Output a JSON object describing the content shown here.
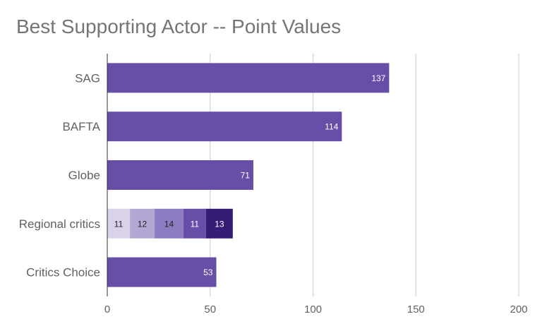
{
  "chart_data": {
    "type": "bar",
    "orientation": "horizontal",
    "stacked": true,
    "title": "Best Supporting Actor -- Point Values",
    "xlabel": "",
    "ylabel": "",
    "xlim": [
      0,
      200
    ],
    "x_ticks": [
      0,
      50,
      100,
      150,
      200
    ],
    "grid": true,
    "legend": "none",
    "categories": [
      "SAG",
      "BAFTA",
      "Globe",
      "Regional critics",
      "Critics Choice"
    ],
    "bars": [
      {
        "category": "SAG",
        "segments": [
          {
            "value": 137,
            "color": "#674ea7",
            "label_color": "#ffffff"
          }
        ]
      },
      {
        "category": "BAFTA",
        "segments": [
          {
            "value": 114,
            "color": "#674ea7",
            "label_color": "#ffffff"
          }
        ]
      },
      {
        "category": "Globe",
        "segments": [
          {
            "value": 71,
            "color": "#674ea7",
            "label_color": "#ffffff"
          }
        ]
      },
      {
        "category": "Regional critics",
        "segments": [
          {
            "value": 11,
            "color": "#d9d2e9",
            "label_color": "#212121"
          },
          {
            "value": 12,
            "color": "#b4a7d6",
            "label_color": "#212121"
          },
          {
            "value": 14,
            "color": "#8e7cc3",
            "label_color": "#212121"
          },
          {
            "value": 11,
            "color": "#674ea7",
            "label_color": "#ffffff"
          },
          {
            "value": 13,
            "color": "#351c75",
            "label_color": "#ffffff"
          }
        ]
      },
      {
        "category": "Critics Choice",
        "segments": [
          {
            "value": 53,
            "color": "#674ea7",
            "label_color": "#ffffff"
          }
        ]
      }
    ],
    "colors": {
      "title": "#757575",
      "axis_label": "#616161",
      "gridline": "#cccccc",
      "axis_line": "#333333"
    }
  }
}
